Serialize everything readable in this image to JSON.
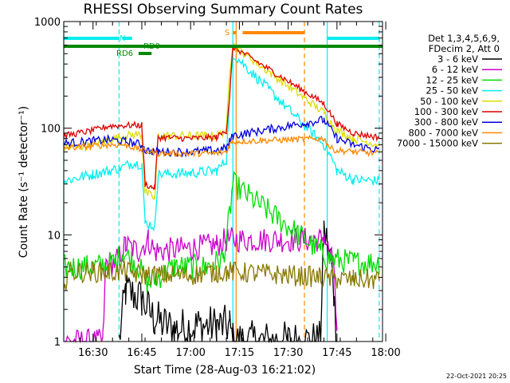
{
  "chart_data": {
    "type": "line",
    "title": "RHESSI Observing Summary Count Rates",
    "xlabel": "Start Time (28-Aug-03 16:21:02)",
    "ylabel": "Count Rate (s⁻¹ detector⁻¹)",
    "yscale": "log",
    "ylim": [
      1,
      1000
    ],
    "xlim": [
      "16:21",
      "17:59"
    ],
    "grid": false,
    "legend_position": "top-right",
    "x_ticks": [
      "16:30",
      "16:45",
      "17:00",
      "17:15",
      "17:30",
      "17:45",
      "18:00"
    ],
    "y_ticks": [
      "1",
      "10",
      "100",
      "1000"
    ],
    "legend_header": [
      "Det 1,3,4,5,6,9,",
      "FDecim 2, Att 0"
    ],
    "legend_entries": [
      {
        "label": "3 - 6 keV",
        "color": "#000000"
      },
      {
        "label": "6 - 12 keV",
        "color": "#cc00cc"
      },
      {
        "label": "12 - 25 keV",
        "color": "#00dd00"
      },
      {
        "label": "25 - 50 keV",
        "color": "#00eeee"
      },
      {
        "label": "50 - 100 keV",
        "color": "#dddd00"
      },
      {
        "label": "100 - 300 keV",
        "color": "#dd0000"
      },
      {
        "label": "300 - 800 keV",
        "color": "#0000dd"
      },
      {
        "label": "800 - 7000 keV",
        "color": "#ff8800"
      },
      {
        "label": "7000 - 15000 keV",
        "color": "#887700"
      }
    ],
    "flags": [
      {
        "label": "N",
        "color": "#00eeee",
        "segments": [
          [
            "16:21",
            "16:38"
          ],
          [
            "16:39",
            "16:42"
          ],
          [
            "17:42",
            "17:58"
          ]
        ]
      },
      {
        "label": "RD0",
        "color": "#008800",
        "segments": [
          [
            "16:44",
            "16:49"
          ]
        ]
      },
      {
        "label": "RD6",
        "color": "#008800",
        "segments": [
          [
            "16:44",
            "16:48"
          ]
        ]
      },
      {
        "label": "S",
        "color": "#ff8800",
        "segments": [
          [
            "17:13",
            "17:14"
          ],
          [
            "17:16",
            "17:35"
          ]
        ]
      },
      {
        "label": "",
        "color": "#008800",
        "segments": [
          [
            "16:21",
            "17:59"
          ]
        ]
      }
    ],
    "markers": [
      {
        "time": "16:21",
        "color": "#00eeee",
        "style": "solid"
      },
      {
        "time": "16:38",
        "color": "#00eeee",
        "style": "dashed"
      },
      {
        "time": "17:13",
        "color": "#00eeee",
        "style": "solid"
      },
      {
        "time": "17:42",
        "color": "#00eeee",
        "style": "solid"
      },
      {
        "time": "17:58",
        "color": "#00eeee",
        "style": "dashed"
      },
      {
        "time": "17:14",
        "color": "#ff8800",
        "style": "solid"
      },
      {
        "time": "17:35",
        "color": "#ff8800",
        "style": "dashed"
      }
    ],
    "data_gaps": [
      [
        "17:14",
        "17:38"
      ]
    ],
    "series": [
      {
        "name": "3 - 6 keV",
        "color": "#000000",
        "noise": 0.2,
        "points": [
          [
            "16:38",
            1
          ],
          [
            "16:40",
            3
          ],
          [
            "16:45",
            2.5
          ],
          [
            "16:49",
            1.6
          ],
          [
            "16:55",
            1.3
          ],
          [
            "17:02",
            1.4
          ],
          [
            "17:08",
            1.4
          ],
          [
            "17:12",
            1.4
          ],
          [
            "17:13",
            1
          ],
          [
            "17:40",
            1
          ],
          [
            "17:41",
            11
          ],
          [
            "17:43",
            6
          ],
          [
            "17:44",
            3
          ],
          [
            "17:45",
            1
          ]
        ]
      },
      {
        "name": "6 - 12 keV",
        "color": "#cc00cc",
        "noise": 0.12,
        "points": [
          [
            "16:21",
            1
          ],
          [
            "16:33",
            1
          ],
          [
            "16:34",
            5.5
          ],
          [
            "16:37",
            5.5
          ],
          [
            "16:40",
            8
          ],
          [
            "16:44",
            7
          ],
          [
            "16:47",
            9
          ],
          [
            "16:49",
            7
          ],
          [
            "17:00",
            7.5
          ],
          [
            "17:08",
            8
          ],
          [
            "17:11",
            9
          ],
          [
            "17:13",
            9
          ],
          [
            "17:40",
            9
          ],
          [
            "17:41",
            10
          ],
          [
            "17:43",
            6
          ],
          [
            "17:44",
            5.5
          ],
          [
            "17:45",
            1
          ]
        ]
      },
      {
        "name": "12 - 25 keV",
        "color": "#00dd00",
        "noise": 0.12,
        "points": [
          [
            "16:21",
            5
          ],
          [
            "16:30",
            5
          ],
          [
            "16:37",
            5.5
          ],
          [
            "16:39",
            7
          ],
          [
            "16:44",
            5
          ],
          [
            "16:47",
            3.5
          ],
          [
            "16:50",
            4
          ],
          [
            "16:55",
            5
          ],
          [
            "17:05",
            5
          ],
          [
            "17:10",
            6
          ],
          [
            "17:12",
            15
          ],
          [
            "17:13",
            30
          ],
          [
            "17:40",
            7
          ],
          [
            "17:42",
            6
          ],
          [
            "17:50",
            5.5
          ],
          [
            "17:58",
            5.5
          ]
        ]
      },
      {
        "name": "25 - 50 keV",
        "color": "#00eeee",
        "noise": 0.05,
        "points": [
          [
            "16:21",
            32
          ],
          [
            "16:30",
            37
          ],
          [
            "16:35",
            40
          ],
          [
            "16:38",
            42
          ],
          [
            "16:42",
            47
          ],
          [
            "16:45",
            46
          ],
          [
            "16:46",
            13
          ],
          [
            "16:49",
            12
          ],
          [
            "16:50",
            37
          ],
          [
            "17:00",
            38
          ],
          [
            "17:08",
            40
          ],
          [
            "17:11",
            50
          ],
          [
            "17:12",
            200
          ],
          [
            "17:13",
            500
          ],
          [
            "17:41",
            70
          ],
          [
            "17:43",
            55
          ],
          [
            "17:45",
            40
          ],
          [
            "17:50",
            33
          ],
          [
            "17:58",
            32
          ]
        ]
      },
      {
        "name": "50 - 100 keV",
        "color": "#dddd00",
        "noise": 0.04,
        "points": [
          [
            "16:21",
            65
          ],
          [
            "16:28",
            68
          ],
          [
            "16:35",
            78
          ],
          [
            "16:40",
            85
          ],
          [
            "16:45",
            88
          ],
          [
            "16:46",
            25
          ],
          [
            "16:49",
            22
          ],
          [
            "16:50",
            85
          ],
          [
            "17:00",
            85
          ],
          [
            "17:08",
            85
          ],
          [
            "17:11",
            95
          ],
          [
            "17:12",
            350
          ],
          [
            "17:13",
            600
          ],
          [
            "17:41",
            140
          ],
          [
            "17:45",
            95
          ],
          [
            "17:50",
            80
          ],
          [
            "17:58",
            70
          ]
        ]
      },
      {
        "name": "100 - 300 keV",
        "color": "#dd0000",
        "noise": 0.03,
        "points": [
          [
            "16:21",
            85
          ],
          [
            "16:30",
            95
          ],
          [
            "16:35",
            105
          ],
          [
            "16:45",
            107
          ],
          [
            "16:46",
            30
          ],
          [
            "16:48",
            28
          ],
          [
            "16:49",
            28
          ],
          [
            "16:50",
            82
          ],
          [
            "17:00",
            80
          ],
          [
            "17:08",
            82
          ],
          [
            "17:11",
            95
          ],
          [
            "17:12",
            200
          ],
          [
            "17:13",
            580
          ],
          [
            "17:41",
            170
          ],
          [
            "17:45",
            110
          ],
          [
            "17:50",
            90
          ],
          [
            "17:58",
            82
          ]
        ]
      },
      {
        "name": "300 - 800 keV",
        "color": "#0000dd",
        "noise": 0.04,
        "points": [
          [
            "16:21",
            72
          ],
          [
            "16:35",
            78
          ],
          [
            "16:40",
            75
          ],
          [
            "16:45",
            70
          ],
          [
            "16:46",
            62
          ],
          [
            "16:50",
            60
          ],
          [
            "17:00",
            60
          ],
          [
            "17:08",
            62
          ],
          [
            "17:11",
            65
          ],
          [
            "17:12",
            75
          ],
          [
            "17:13",
            85
          ],
          [
            "17:41",
            120
          ],
          [
            "17:45",
            80
          ],
          [
            "17:50",
            70
          ],
          [
            "17:58",
            62
          ]
        ]
      },
      {
        "name": "800 - 7000 keV",
        "color": "#ff8800",
        "noise": 0.03,
        "points": [
          [
            "16:21",
            65
          ],
          [
            "16:30",
            68
          ],
          [
            "16:35",
            70
          ],
          [
            "16:40",
            70
          ],
          [
            "16:45",
            62
          ],
          [
            "16:50",
            58
          ],
          [
            "17:00",
            58
          ],
          [
            "17:08",
            58
          ],
          [
            "17:11",
            60
          ],
          [
            "17:12",
            70
          ],
          [
            "17:13",
            75
          ],
          [
            "17:41",
            80
          ],
          [
            "17:43",
            65
          ],
          [
            "17:45",
            62
          ],
          [
            "17:50",
            60
          ],
          [
            "17:58",
            58
          ]
        ]
      },
      {
        "name": "7000 - 15000 keV",
        "color": "#887700",
        "noise": 0.1,
        "points": [
          [
            "16:21",
            2.5
          ],
          [
            "16:22",
            4.5
          ],
          [
            "16:30",
            4.5
          ],
          [
            "16:35",
            4.5
          ],
          [
            "16:40",
            4.5
          ],
          [
            "16:45",
            4.2
          ],
          [
            "16:50",
            4.2
          ],
          [
            "17:00",
            4.2
          ],
          [
            "17:08",
            4.5
          ],
          [
            "17:11",
            4.5
          ],
          [
            "17:13",
            4.5
          ],
          [
            "17:40",
            4
          ],
          [
            "17:45",
            3.8
          ],
          [
            "17:50",
            3.8
          ],
          [
            "17:58",
            3.8
          ]
        ]
      }
    ]
  },
  "stamp": "22-Oct-2021 20:25"
}
